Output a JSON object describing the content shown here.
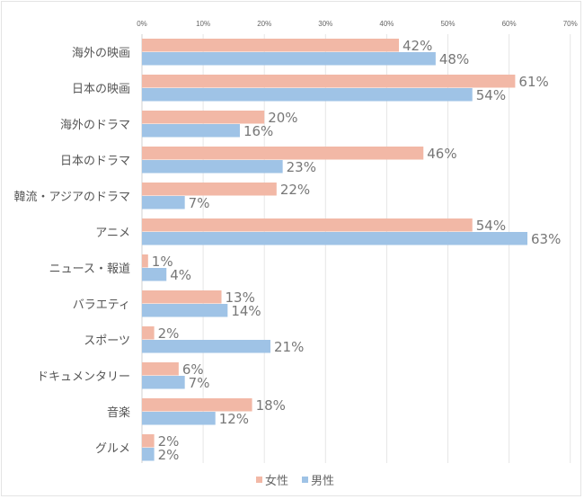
{
  "chart_data": {
    "type": "bar",
    "orientation": "horizontal",
    "title": "",
    "xlabel": "",
    "ylabel": "",
    "xlim": [
      0,
      70
    ],
    "x_ticks": [
      "0%",
      "10%",
      "20%",
      "30%",
      "40%",
      "50%",
      "60%",
      "70%"
    ],
    "x_tick_values": [
      0,
      10,
      20,
      30,
      40,
      50,
      60,
      70
    ],
    "grid": true,
    "legend_position": "bottom",
    "categories": [
      "海外の映画",
      "日本の映画",
      "海外のドラマ",
      "日本のドラマ",
      "韓流・アジアのドラマ",
      "アニメ",
      "ニュース・報道",
      "バラエティ",
      "スポーツ",
      "ドキュメンタリー",
      "音楽",
      "グルメ"
    ],
    "series": [
      {
        "name": "女性",
        "color": "#f2b8a6",
        "values": [
          42,
          61,
          20,
          46,
          22,
          54,
          1,
          13,
          2,
          6,
          18,
          2
        ],
        "labels": [
          "42%",
          "61%",
          "20%",
          "46%",
          "22%",
          "54%",
          "1%",
          "13%",
          "2%",
          "6%",
          "18%",
          "2%"
        ]
      },
      {
        "name": "男性",
        "color": "#9fc3e6",
        "values": [
          48,
          54,
          16,
          23,
          7,
          63,
          4,
          14,
          21,
          7,
          12,
          2
        ],
        "labels": [
          "48%",
          "54%",
          "16%",
          "23%",
          "7%",
          "63%",
          "4%",
          "14%",
          "21%",
          "7%",
          "12%",
          "2%"
        ]
      }
    ]
  }
}
